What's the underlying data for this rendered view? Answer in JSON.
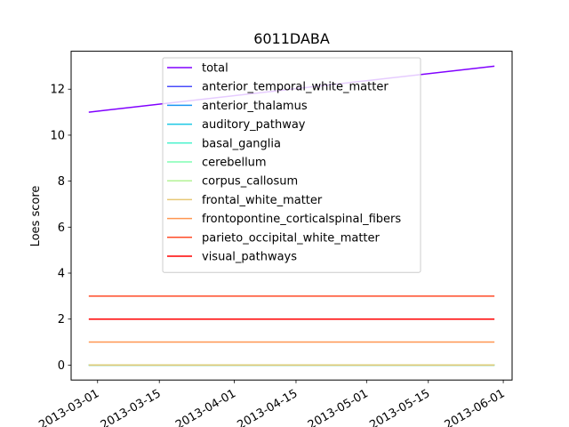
{
  "chart_data": {
    "type": "line",
    "title": "6011DABA",
    "xlabel": "",
    "ylabel": "Loes score",
    "x": [
      "2013-02-27",
      "2013-05-30"
    ],
    "xlim": [
      "2013-02-23",
      "2013-06-03"
    ],
    "ylim": [
      -0.65,
      13.65
    ],
    "xticks": [
      "2013-03-01",
      "2013-03-15",
      "2013-04-01",
      "2013-04-15",
      "2013-05-01",
      "2013-05-15",
      "2013-06-01"
    ],
    "yticks": [
      0,
      2,
      4,
      6,
      8,
      10,
      12
    ],
    "grid": false,
    "legend_position": "top-center",
    "series": [
      {
        "name": "total",
        "values": [
          11,
          13
        ],
        "color": "#8000ff"
      },
      {
        "name": "anterior_temporal_white_matter",
        "values": [
          0,
          0
        ],
        "color": "#4a4cfb"
      },
      {
        "name": "anterior_thalamus",
        "values": [
          0,
          0
        ],
        "color": "#1996f3"
      },
      {
        "name": "auditory_pathway",
        "values": [
          0,
          0
        ],
        "color": "#1cc8e5"
      },
      {
        "name": "basal_ganglia",
        "values": [
          0,
          0
        ],
        "color": "#4df3ce"
      },
      {
        "name": "cerebellum",
        "values": [
          0,
          0
        ],
        "color": "#80feb3"
      },
      {
        "name": "corpus_callosum",
        "values": [
          0,
          0
        ],
        "color": "#b3f396"
      },
      {
        "name": "frontal_white_matter",
        "values": [
          0,
          0
        ],
        "color": "#e6c874"
      },
      {
        "name": "frontopontine_corticalspinal_fibers",
        "values": [
          1,
          1
        ],
        "color": "#ff9650"
      },
      {
        "name": "parieto_occipital_white_matter",
        "values": [
          3,
          3
        ],
        "color": "#ff4c28"
      },
      {
        "name": "visual_pathways",
        "values": [
          2,
          2
        ],
        "color": "#ff0000"
      }
    ]
  }
}
